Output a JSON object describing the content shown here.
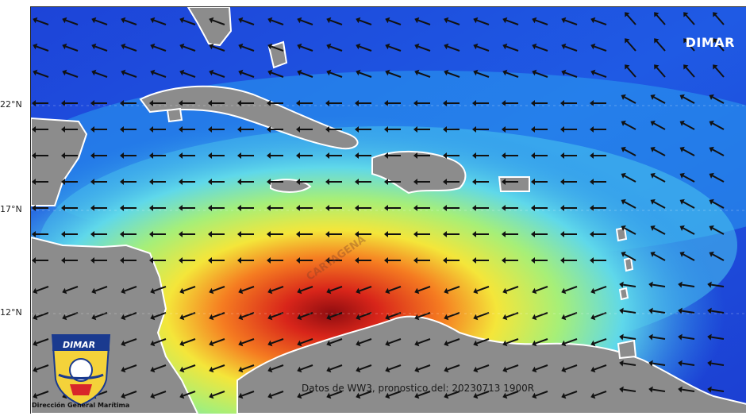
{
  "map": {
    "brand": "DIMAR",
    "caption": "Datos de WW3, pronostico del: 20230713 1900R",
    "latitude_labels": [
      "22°N",
      "17°N",
      "12°N"
    ],
    "watermark": "CARTAGENA",
    "colors": {
      "sea_low": "#1f3fd6",
      "sea_mid": "#2aa8f0",
      "sea_cyan": "#6fe0e8",
      "sea_green": "#a8f07a",
      "sea_yellow": "#f4ec3a",
      "sea_orange": "#f79a22",
      "sea_red": "#e0291a",
      "sea_max": "#9b0f12",
      "land": "#8c8c8c",
      "arrow": "#111111"
    },
    "arrow_field": "wind direction arrows, predominantly westward"
  },
  "logo": {
    "word": "DIMAR",
    "org_name": "Dirección General Marítima"
  }
}
